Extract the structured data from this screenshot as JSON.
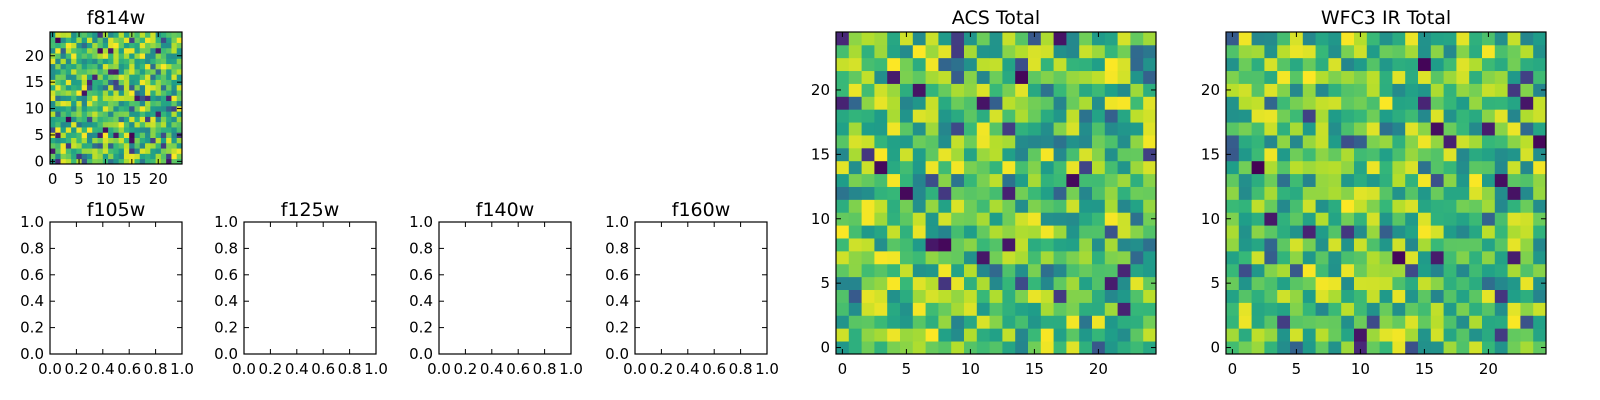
{
  "chart_data": [
    {
      "type": "heatmap",
      "title": "f814w",
      "rows": 25,
      "cols": 25,
      "xlim": [
        -0.5,
        24.5
      ],
      "ylim": [
        -0.5,
        24.5
      ],
      "xticks": [
        0,
        5,
        10,
        15,
        20
      ],
      "yticks": [
        0,
        5,
        10,
        15,
        20
      ],
      "colormap": "viridis",
      "vmin": 0.0,
      "vmax": 1.0,
      "seed": 814
    },
    {
      "type": "empty",
      "title": "f105w",
      "xlim": [
        0.0,
        1.0
      ],
      "ylim": [
        0.0,
        1.0
      ],
      "xticks": [
        "0.0",
        "0.2",
        "0.4",
        "0.6",
        "0.8",
        "1.0"
      ],
      "yticks": [
        "0.0",
        "0.2",
        "0.4",
        "0.6",
        "0.8",
        "1.0"
      ]
    },
    {
      "type": "empty",
      "title": "f125w",
      "xlim": [
        0.0,
        1.0
      ],
      "ylim": [
        0.0,
        1.0
      ],
      "xticks": [
        "0.0",
        "0.2",
        "0.4",
        "0.6",
        "0.8",
        "1.0"
      ],
      "yticks": [
        "0.0",
        "0.2",
        "0.4",
        "0.6",
        "0.8",
        "1.0"
      ]
    },
    {
      "type": "empty",
      "title": "f140w",
      "xlim": [
        0.0,
        1.0
      ],
      "ylim": [
        0.0,
        1.0
      ],
      "xticks": [
        "0.0",
        "0.2",
        "0.4",
        "0.6",
        "0.8",
        "1.0"
      ],
      "yticks": [
        "0.0",
        "0.2",
        "0.4",
        "0.6",
        "0.8",
        "1.0"
      ]
    },
    {
      "type": "empty",
      "title": "f160w",
      "xlim": [
        0.0,
        1.0
      ],
      "ylim": [
        0.0,
        1.0
      ],
      "xticks": [
        "0.0",
        "0.2",
        "0.4",
        "0.6",
        "0.8",
        "1.0"
      ],
      "yticks": [
        "0.0",
        "0.2",
        "0.4",
        "0.6",
        "0.8",
        "1.0"
      ]
    },
    {
      "type": "heatmap",
      "title": "ACS Total",
      "rows": 25,
      "cols": 25,
      "xlim": [
        -0.5,
        24.5
      ],
      "ylim": [
        -0.5,
        24.5
      ],
      "xticks": [
        0,
        5,
        10,
        15,
        20
      ],
      "yticks": [
        0,
        5,
        10,
        15,
        20
      ],
      "colormap": "viridis",
      "vmin": 0.0,
      "vmax": 1.0,
      "seed": 1001
    },
    {
      "type": "heatmap",
      "title": "WFC3 IR Total",
      "rows": 25,
      "cols": 25,
      "xlim": [
        -0.5,
        24.5
      ],
      "ylim": [
        -0.5,
        24.5
      ],
      "xticks": [
        0,
        5,
        10,
        15,
        20
      ],
      "yticks": [
        0,
        5,
        10,
        15,
        20
      ],
      "colormap": "viridis",
      "vmin": 0.0,
      "vmax": 1.0,
      "seed": 3003
    }
  ]
}
